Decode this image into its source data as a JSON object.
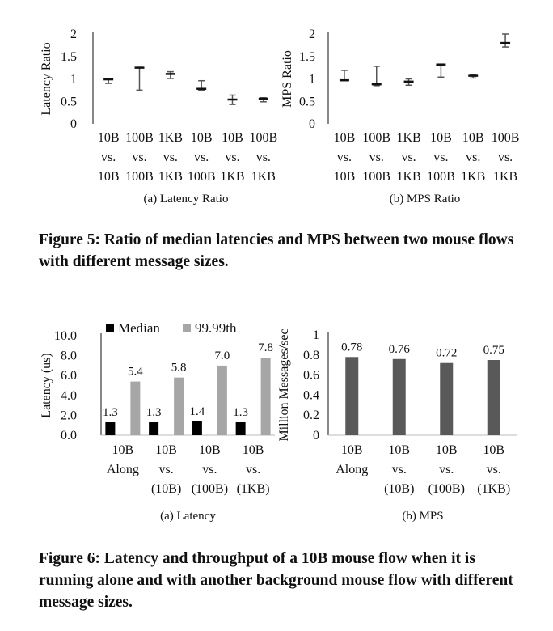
{
  "figure5": {
    "caption": "Figure 5: Ratio of median latencies and MPS between two mouse flows with different message sizes."
  },
  "figure6": {
    "caption": "Figure 6: Latency and throughput of a 10B mouse flow when it is running alone and with another background mouse flow with different message sizes."
  },
  "chart_data": [
    {
      "id": "fig5a",
      "type": "range",
      "subtitle": "(a) Latency Ratio",
      "ylabel": "Latency Ratio",
      "ylim": [
        0,
        2
      ],
      "yticks": [
        "0",
        "0.5",
        "1",
        "1.5",
        "2"
      ],
      "ytick_values": [
        0,
        0.5,
        1,
        1.5,
        2
      ],
      "categories": [
        [
          "10B",
          "vs.",
          "10B"
        ],
        [
          "100B",
          "vs.",
          "100B"
        ],
        [
          "1KB",
          "vs.",
          "1KB"
        ],
        [
          "10B",
          "vs.",
          "100B"
        ],
        [
          "10B",
          "vs.",
          "1KB"
        ],
        [
          "100B",
          "vs.",
          "1KB"
        ]
      ],
      "values": [
        {
          "low": 0.9,
          "high": 1.01,
          "median": 0.99
        },
        {
          "low": 0.75,
          "high": 1.26,
          "median": 1.25
        },
        {
          "low": 1.01,
          "high": 1.16,
          "median": 1.11
        },
        {
          "low": 0.75,
          "high": 0.96,
          "median": 0.78
        },
        {
          "low": 0.43,
          "high": 0.64,
          "median": 0.54
        },
        {
          "low": 0.49,
          "high": 0.58,
          "median": 0.56
        }
      ],
      "grid": false
    },
    {
      "id": "fig5b",
      "type": "range",
      "subtitle": "(b) MPS Ratio",
      "ylabel": "MPS Ratio",
      "ylim": [
        0,
        2
      ],
      "yticks": [
        "0",
        "0.5",
        "1",
        "1.5",
        "2"
      ],
      "ytick_values": [
        0,
        0.5,
        1,
        1.5,
        2
      ],
      "categories": [
        [
          "10B",
          "vs.",
          "10B"
        ],
        [
          "100B",
          "vs.",
          "100B"
        ],
        [
          "1KB",
          "vs.",
          "1KB"
        ],
        [
          "10B",
          "vs.",
          "100B"
        ],
        [
          "10B",
          "vs.",
          "1KB"
        ],
        [
          "100B",
          "vs.",
          "1KB"
        ]
      ],
      "values": [
        {
          "low": 0.96,
          "high": 1.19,
          "median": 0.97
        },
        {
          "low": 0.85,
          "high": 1.28,
          "median": 0.88
        },
        {
          "low": 0.86,
          "high": 1.0,
          "median": 0.94
        },
        {
          "low": 1.04,
          "high": 1.33,
          "median": 1.32
        },
        {
          "low": 1.02,
          "high": 1.1,
          "median": 1.07
        },
        {
          "low": 1.71,
          "high": 2.0,
          "median": 1.8
        }
      ],
      "grid": false
    },
    {
      "id": "fig6a",
      "type": "bar",
      "subtitle": "(a) Latency",
      "ylabel": "Latency (us)",
      "ylim": [
        0,
        10
      ],
      "yticks": [
        "0.0",
        "2.0",
        "4.0",
        "6.0",
        "8.0",
        "10.0"
      ],
      "ytick_values": [
        0,
        2,
        4,
        6,
        8,
        10
      ],
      "categories": [
        [
          "10B",
          "Along"
        ],
        [
          "10B",
          "vs.",
          "(10B)"
        ],
        [
          "10B",
          "vs.",
          "(100B)"
        ],
        [
          "10B",
          "vs.",
          "(1KB)"
        ]
      ],
      "series": [
        {
          "name": "Median",
          "color": "#000000",
          "values": [
            1.3,
            1.3,
            1.4,
            1.3
          ],
          "labels": [
            "1.3",
            "1.3",
            "1.4",
            "1.3"
          ]
        },
        {
          "name": "99.99th",
          "color": "#a6a6a6",
          "values": [
            5.4,
            5.8,
            7.0,
            7.8
          ],
          "labels": [
            "5.4",
            "5.8",
            "7.0",
            "7.8"
          ]
        }
      ],
      "legend": "top",
      "grid": false
    },
    {
      "id": "fig6b",
      "type": "bar",
      "subtitle": "(b) MPS",
      "ylabel": "Million Messages/sec",
      "ylim": [
        0,
        1
      ],
      "yticks": [
        "0",
        "0.2",
        "0.4",
        "0.6",
        "0.8",
        "1"
      ],
      "ytick_values": [
        0,
        0.2,
        0.4,
        0.6,
        0.8,
        1
      ],
      "categories": [
        [
          "10B",
          "Along"
        ],
        [
          "10B",
          "vs.",
          "(10B)"
        ],
        [
          "10B",
          "vs.",
          "(100B)"
        ],
        [
          "10B",
          "vs.",
          "(1KB)"
        ]
      ],
      "series": [
        {
          "color": "#595959",
          "values": [
            0.78,
            0.76,
            0.72,
            0.75
          ],
          "labels": [
            "0.78",
            "0.76",
            "0.72",
            "0.75"
          ]
        }
      ],
      "grid": false
    }
  ]
}
